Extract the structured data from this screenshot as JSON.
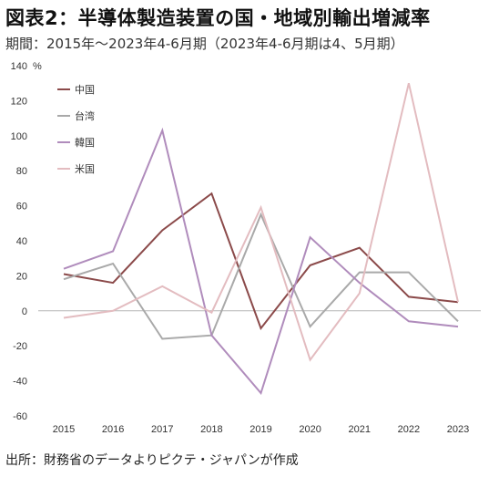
{
  "header": {
    "title": "図表2：半導体製造装置の国・地域別輸出増減率",
    "subtitle": "期間：2015年～2023年4-6月期（2023年4-6月期は4、5月期）"
  },
  "footer": {
    "source": "出所：財務省のデータよりピクテ・ジャパンが作成"
  },
  "chart_data": {
    "type": "line",
    "ylabel": "%",
    "ylim": [
      -60,
      140
    ],
    "yticks": [
      140,
      120,
      100,
      80,
      60,
      40,
      20,
      0,
      -20,
      -40,
      -60
    ],
    "x": [
      "2015",
      "2016",
      "2017",
      "2018",
      "2019",
      "2020",
      "2021",
      "2022",
      "2023"
    ],
    "legend_position": "top-left",
    "grid": false,
    "series": [
      {
        "name": "中国",
        "color": "#8b4a4a",
        "values": [
          21,
          16,
          46,
          67,
          -10,
          26,
          36,
          8,
          5
        ]
      },
      {
        "name": "台湾",
        "color": "#a9a9a9",
        "values": [
          18,
          27,
          -16,
          -14,
          55,
          -9,
          22,
          22,
          -6
        ]
      },
      {
        "name": "韓国",
        "color": "#b08cbc",
        "values": [
          24,
          34,
          103,
          -14,
          -47,
          42,
          16,
          -6,
          -9
        ]
      },
      {
        "name": "米国",
        "color": "#e3bcc0",
        "values": [
          -4,
          0,
          14,
          -1,
          59,
          -28,
          10,
          130,
          5
        ]
      }
    ]
  }
}
